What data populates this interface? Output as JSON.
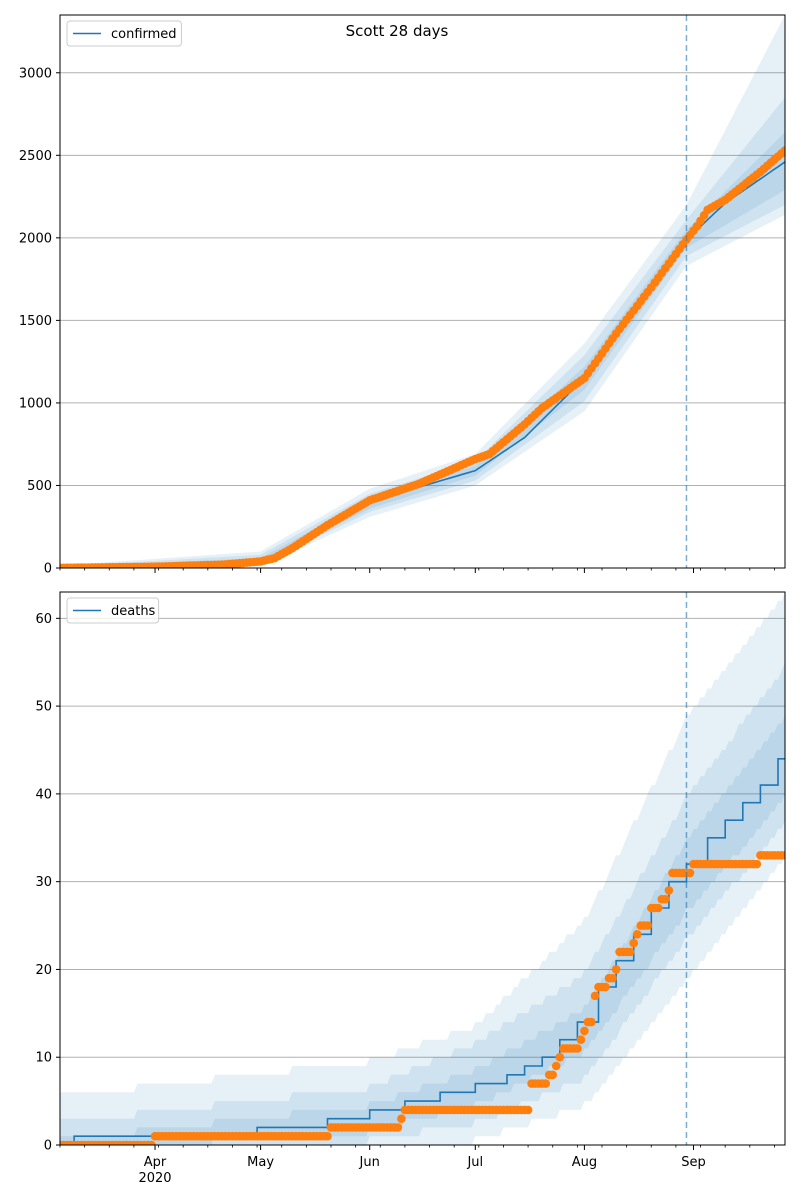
{
  "figure": {
    "title": "Scott 28 days"
  },
  "x_axis": {
    "month_labels": [
      "Apr",
      "May",
      "Jun",
      "Jul",
      "Aug",
      "Sep"
    ],
    "year_label": "2020",
    "vline_date": "2020-08-30"
  },
  "colors": {
    "model": "#1f77b4",
    "observed": "#ff7f0e",
    "band": "#1f77b4",
    "grid": "#b0b0b0"
  },
  "chart_data": [
    {
      "type": "line",
      "panel": "top",
      "legend": [
        "confirmed"
      ],
      "legend_position": "upper-left",
      "ylim": [
        0,
        3350
      ],
      "yticks": [
        0,
        500,
        1000,
        1500,
        2000,
        2500,
        3000
      ],
      "xlim": [
        "2020-03-05",
        "2020-09-27"
      ],
      "grid_y": true,
      "series": [
        {
          "name": "confirmed",
          "kind": "model_line",
          "points": [
            [
              "2020-03-05",
              2
            ],
            [
              "2020-04-01",
              5
            ],
            [
              "2020-04-20",
              20
            ],
            [
              "2020-05-01",
              40
            ],
            [
              "2020-05-10",
              110
            ],
            [
              "2020-05-20",
              260
            ],
            [
              "2020-06-01",
              390
            ],
            [
              "2020-06-15",
              490
            ],
            [
              "2020-07-01",
              590
            ],
            [
              "2020-07-15",
              790
            ],
            [
              "2020-08-01",
              1150
            ],
            [
              "2020-08-15",
              1570
            ],
            [
              "2020-08-30",
              1990
            ],
            [
              "2020-09-10",
              2210
            ],
            [
              "2020-09-27",
              2460
            ]
          ]
        },
        {
          "kind": "observed_points",
          "points": [
            [
              "2020-03-05",
              1
            ],
            [
              "2020-04-01",
              8
            ],
            [
              "2020-04-20",
              20
            ],
            [
              "2020-05-01",
              40
            ],
            [
              "2020-05-05",
              60
            ],
            [
              "2020-05-10",
              120
            ],
            [
              "2020-05-20",
              260
            ],
            [
              "2020-06-01",
              410
            ],
            [
              "2020-06-15",
              510
            ],
            [
              "2020-07-01",
              660
            ],
            [
              "2020-07-05",
              690
            ],
            [
              "2020-07-15",
              870
            ],
            [
              "2020-07-20",
              970
            ],
            [
              "2020-08-01",
              1150
            ],
            [
              "2020-08-10",
              1420
            ],
            [
              "2020-08-20",
              1700
            ],
            [
              "2020-08-30",
              1990
            ],
            [
              "2020-09-02",
              2070
            ],
            [
              "2020-09-05",
              2170
            ],
            [
              "2020-09-10",
              2230
            ],
            [
              "2020-09-20",
              2400
            ],
            [
              "2020-09-27",
              2530
            ]
          ]
        }
      ],
      "bands": [
        {
          "label": "inner",
          "lower": [
            [
              "2020-03-05",
              0
            ],
            [
              "2020-05-01",
              30
            ],
            [
              "2020-06-01",
              360
            ],
            [
              "2020-07-01",
              560
            ],
            [
              "2020-08-01",
              1080
            ],
            [
              "2020-08-30",
              1940
            ],
            [
              "2020-09-27",
              2290
            ]
          ],
          "upper": [
            [
              "2020-03-05",
              6
            ],
            [
              "2020-05-01",
              60
            ],
            [
              "2020-06-01",
              420
            ],
            [
              "2020-07-01",
              620
            ],
            [
              "2020-08-01",
              1220
            ],
            [
              "2020-08-30",
              2050
            ],
            [
              "2020-09-27",
              2640
            ]
          ]
        },
        {
          "label": "middle",
          "lower": [
            [
              "2020-03-05",
              0
            ],
            [
              "2020-05-01",
              20
            ],
            [
              "2020-06-01",
              340
            ],
            [
              "2020-07-01",
              530
            ],
            [
              "2020-08-01",
              1010
            ],
            [
              "2020-08-30",
              1890
            ],
            [
              "2020-09-27",
              2200
            ]
          ],
          "upper": [
            [
              "2020-03-05",
              10
            ],
            [
              "2020-05-01",
              80
            ],
            [
              "2020-06-01",
              450
            ],
            [
              "2020-07-01",
              650
            ],
            [
              "2020-08-01",
              1290
            ],
            [
              "2020-08-30",
              2110
            ],
            [
              "2020-09-27",
              2850
            ]
          ]
        },
        {
          "label": "outer",
          "lower": [
            [
              "2020-03-05",
              0
            ],
            [
              "2020-05-01",
              10
            ],
            [
              "2020-06-01",
              310
            ],
            [
              "2020-07-01",
              500
            ],
            [
              "2020-08-01",
              950
            ],
            [
              "2020-08-30",
              1830
            ],
            [
              "2020-09-27",
              2140
            ]
          ],
          "upper": [
            [
              "2020-03-05",
              15
            ],
            [
              "2020-05-01",
              100
            ],
            [
              "2020-06-01",
              480
            ],
            [
              "2020-07-01",
              690
            ],
            [
              "2020-08-01",
              1360
            ],
            [
              "2020-08-30",
              2200
            ],
            [
              "2020-09-27",
              3350
            ]
          ]
        }
      ]
    },
    {
      "type": "line",
      "panel": "bottom",
      "legend": [
        "deaths"
      ],
      "legend_position": "upper-left",
      "ylim": [
        0,
        63
      ],
      "yticks": [
        0,
        10,
        20,
        30,
        40,
        50,
        60
      ],
      "xlim": [
        "2020-03-05",
        "2020-09-27"
      ],
      "grid_y": true,
      "series": [
        {
          "name": "deaths",
          "kind": "model_step",
          "points": [
            [
              "2020-03-05",
              0
            ],
            [
              "2020-03-09",
              1
            ],
            [
              "2020-04-30",
              2
            ],
            [
              "2020-05-20",
              3
            ],
            [
              "2020-06-01",
              4
            ],
            [
              "2020-06-11",
              5
            ],
            [
              "2020-06-21",
              6
            ],
            [
              "2020-07-01",
              7
            ],
            [
              "2020-07-10",
              8
            ],
            [
              "2020-07-15",
              9
            ],
            [
              "2020-07-20",
              10
            ],
            [
              "2020-07-25",
              12
            ],
            [
              "2020-07-30",
              14
            ],
            [
              "2020-08-05",
              18
            ],
            [
              "2020-08-10",
              21
            ],
            [
              "2020-08-15",
              24
            ],
            [
              "2020-08-20",
              27
            ],
            [
              "2020-08-25",
              30
            ],
            [
              "2020-08-30",
              32
            ],
            [
              "2020-09-05",
              35
            ],
            [
              "2020-09-10",
              37
            ],
            [
              "2020-09-15",
              39
            ],
            [
              "2020-09-20",
              41
            ],
            [
              "2020-09-25",
              44
            ],
            [
              "2020-09-27",
              44
            ]
          ]
        },
        {
          "kind": "observed_points",
          "points": [
            [
              "2020-03-05",
              0
            ],
            [
              "2020-03-31",
              0
            ],
            [
              "2020-04-01",
              1
            ],
            [
              "2020-05-20",
              1
            ],
            [
              "2020-05-21",
              2
            ],
            [
              "2020-06-09",
              2
            ],
            [
              "2020-06-10",
              3
            ],
            [
              "2020-06-11",
              4
            ],
            [
              "2020-07-15",
              4
            ],
            [
              "2020-07-17",
              7
            ],
            [
              "2020-07-20",
              7
            ],
            [
              "2020-07-22",
              8
            ],
            [
              "2020-07-24",
              9
            ],
            [
              "2020-07-25",
              10
            ],
            [
              "2020-07-26",
              11
            ],
            [
              "2020-07-30",
              11
            ],
            [
              "2020-07-31",
              12
            ],
            [
              "2020-08-01",
              13
            ],
            [
              "2020-08-02",
              14
            ],
            [
              "2020-08-03",
              14
            ],
            [
              "2020-08-04",
              17
            ],
            [
              "2020-08-05",
              18
            ],
            [
              "2020-08-07",
              18
            ],
            [
              "2020-08-08",
              19
            ],
            [
              "2020-08-09",
              19
            ],
            [
              "2020-08-10",
              20
            ],
            [
              "2020-08-11",
              22
            ],
            [
              "2020-08-14",
              22
            ],
            [
              "2020-08-15",
              23
            ],
            [
              "2020-08-16",
              24
            ],
            [
              "2020-08-17",
              25
            ],
            [
              "2020-08-19",
              25
            ],
            [
              "2020-08-20",
              27
            ],
            [
              "2020-08-22",
              27
            ],
            [
              "2020-08-23",
              28
            ],
            [
              "2020-08-24",
              28
            ],
            [
              "2020-08-25",
              29
            ],
            [
              "2020-08-26",
              31
            ],
            [
              "2020-08-31",
              31
            ],
            [
              "2020-09-01",
              32
            ],
            [
              "2020-09-19",
              32
            ],
            [
              "2020-09-20",
              33
            ],
            [
              "2020-09-27",
              33
            ]
          ]
        }
      ],
      "bands": [
        {
          "label": "inner",
          "lower": [
            [
              "2020-03-05",
              0
            ],
            [
              "2020-06-01",
              2
            ],
            [
              "2020-07-01",
              5
            ],
            [
              "2020-08-01",
              11
            ],
            [
              "2020-08-30",
              27
            ],
            [
              "2020-09-27",
              40
            ]
          ],
          "upper": [
            [
              "2020-03-05",
              1
            ],
            [
              "2020-06-01",
              5
            ],
            [
              "2020-07-01",
              9
            ],
            [
              "2020-08-01",
              16
            ],
            [
              "2020-08-30",
              35
            ],
            [
              "2020-09-27",
              49
            ]
          ]
        },
        {
          "label": "middle",
          "lower": [
            [
              "2020-03-05",
              0
            ],
            [
              "2020-06-01",
              1
            ],
            [
              "2020-07-01",
              3
            ],
            [
              "2020-08-01",
              8
            ],
            [
              "2020-08-30",
              24
            ],
            [
              "2020-09-27",
              37
            ]
          ],
          "upper": [
            [
              "2020-03-05",
              3
            ],
            [
              "2020-06-01",
              7
            ],
            [
              "2020-07-01",
              12
            ],
            [
              "2020-08-01",
              20
            ],
            [
              "2020-08-30",
              40
            ],
            [
              "2020-09-27",
              55
            ]
          ]
        },
        {
          "label": "outer",
          "lower": [
            [
              "2020-03-05",
              0
            ],
            [
              "2020-06-01",
              0
            ],
            [
              "2020-07-01",
              1
            ],
            [
              "2020-08-01",
              5
            ],
            [
              "2020-08-30",
              19
            ],
            [
              "2020-09-27",
              33
            ]
          ],
          "upper": [
            [
              "2020-03-05",
              6
            ],
            [
              "2020-06-01",
              10
            ],
            [
              "2020-07-01",
              14
            ],
            [
              "2020-08-01",
              26
            ],
            [
              "2020-08-30",
              49
            ],
            [
              "2020-09-27",
              63
            ]
          ]
        }
      ]
    }
  ]
}
